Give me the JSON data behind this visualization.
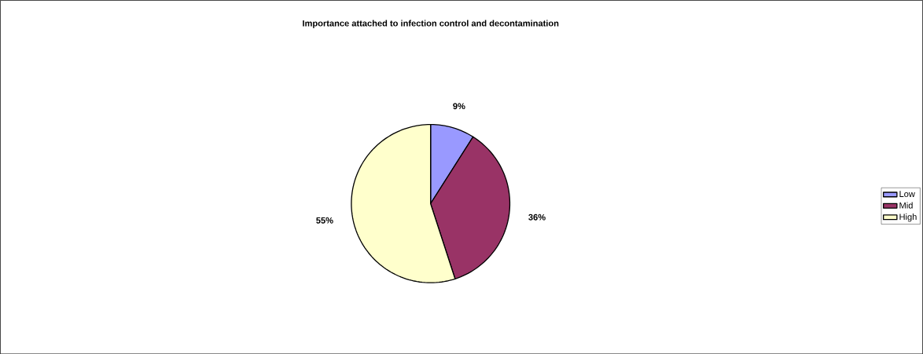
{
  "chart_data": {
    "type": "pie",
    "title": "Importance attached to infection control and decontamination",
    "categories": [
      "Low",
      "Mid",
      "High"
    ],
    "values": [
      9,
      36,
      55
    ],
    "colors": [
      "#9999ff",
      "#993366",
      "#ffffcc"
    ],
    "value_labels": [
      "9%",
      "36%",
      "55%"
    ],
    "legend": "right"
  }
}
